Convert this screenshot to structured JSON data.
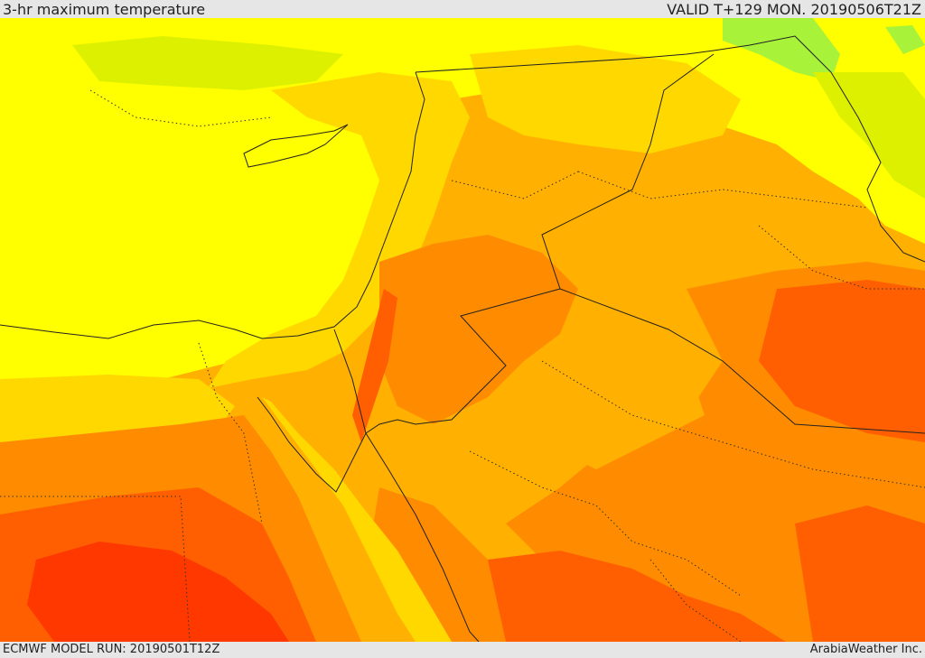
{
  "header": {
    "title": "3-hr maximum temperature",
    "valid": "VALID T+129 MON. 20190506T21Z"
  },
  "footer": {
    "model_run": "ECMWF MODEL RUN: 20190501T12Z",
    "credit": "ArabiaWeather Inc."
  },
  "colors": {
    "green": "#a8f23a",
    "lime": "#dcf000",
    "yellow": "#ffff00",
    "gold": "#ffd800",
    "amber": "#ffb000",
    "orange": "#ff8c00",
    "deep_orange": "#ff5f00",
    "red_orange": "#ff3800",
    "border": "#222222"
  }
}
